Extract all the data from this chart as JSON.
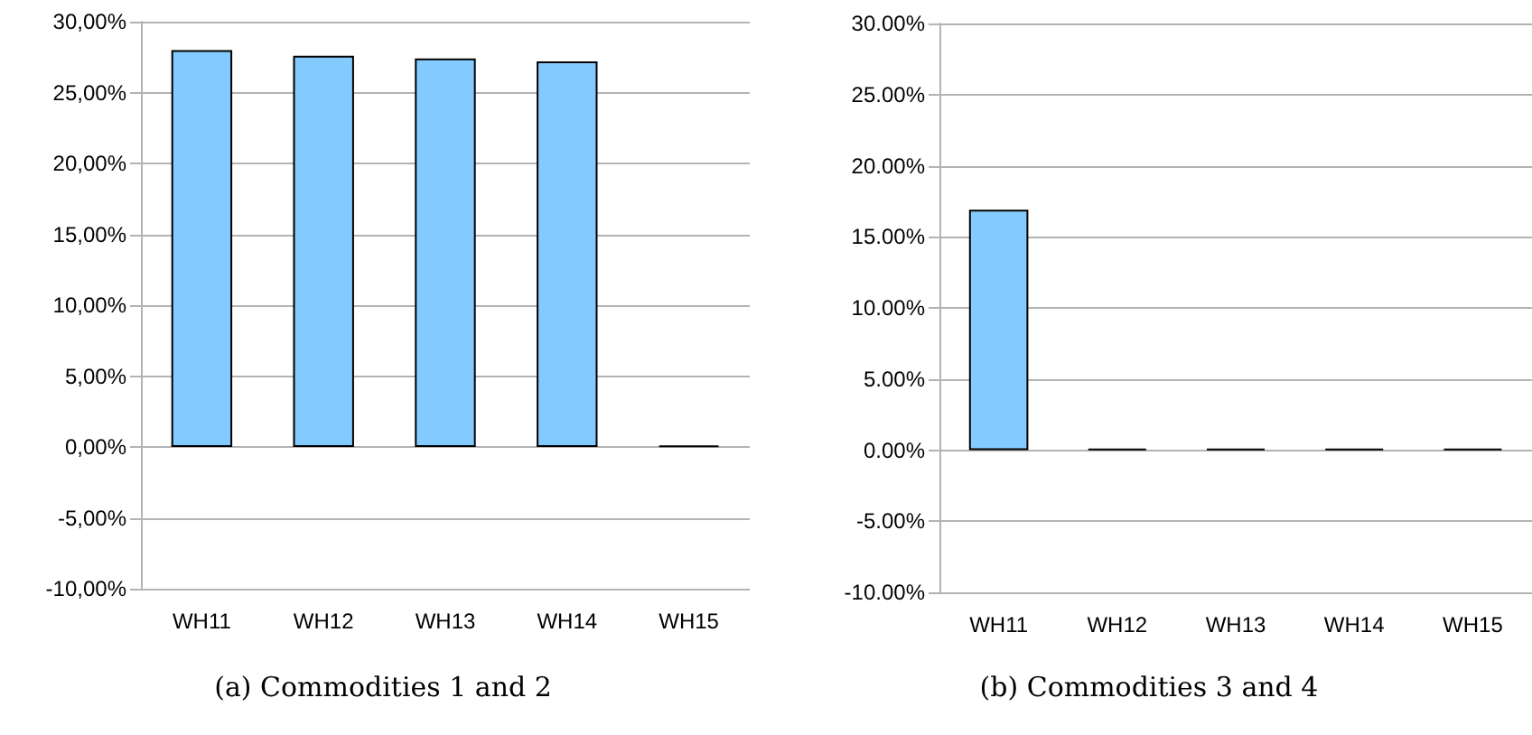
{
  "chart_data": [
    {
      "type": "bar",
      "title": "(a) Commodities 1 and 2",
      "categories": [
        "WH11",
        "WH12",
        "WH13",
        "WH14",
        "WH15"
      ],
      "values": [
        28.0,
        27.6,
        27.4,
        27.2,
        0.1
      ],
      "colors": [
        "#83caff",
        "#83caff",
        "#83caff",
        "#83caff",
        "#000000"
      ],
      "ylim": [
        -10,
        30
      ],
      "yticks": [
        {
          "value": -10,
          "label": "-10,00%"
        },
        {
          "value": -5,
          "label": "-5,00%"
        },
        {
          "value": 0,
          "label": "0,00%"
        },
        {
          "value": 5,
          "label": "5,00%"
        },
        {
          "value": 10,
          "label": "10,00%"
        },
        {
          "value": 15,
          "label": "15,00%"
        },
        {
          "value": 20,
          "label": "20,00%"
        },
        {
          "value": 25,
          "label": "25,00%"
        },
        {
          "value": 30,
          "label": "30,00%"
        }
      ],
      "grid": "y"
    },
    {
      "type": "bar",
      "title": "(b) Commodities 3 and 4",
      "categories": [
        "WH11",
        "WH12",
        "WH13",
        "WH14",
        "WH15"
      ],
      "values": [
        16.9,
        0.1,
        0.1,
        0.1,
        0.1
      ],
      "colors": [
        "#83caff",
        "#000000",
        "#000000",
        "#000000",
        "#000000"
      ],
      "ylim": [
        -10,
        30
      ],
      "yticks": [
        {
          "value": -10,
          "label": "-10.00%"
        },
        {
          "value": -5,
          "label": "-5.00%"
        },
        {
          "value": 0,
          "label": "0.00%"
        },
        {
          "value": 5,
          "label": "5.00%"
        },
        {
          "value": 10,
          "label": "10.00%"
        },
        {
          "value": 15,
          "label": "15.00%"
        },
        {
          "value": 20,
          "label": "20.00%"
        },
        {
          "value": 25,
          "label": "25.00%"
        },
        {
          "value": 30,
          "label": "30.00%"
        }
      ],
      "grid": "y"
    }
  ]
}
